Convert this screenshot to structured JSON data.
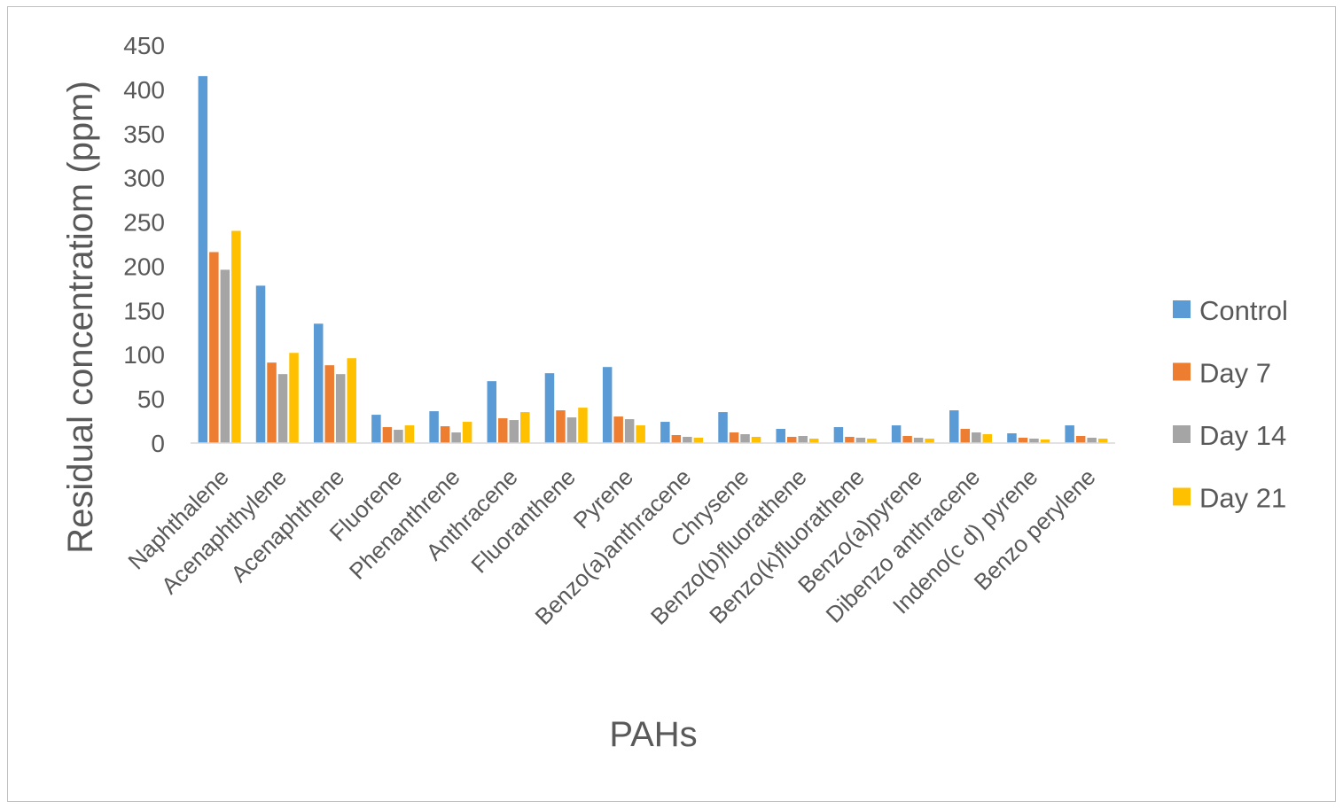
{
  "chart_data": {
    "type": "bar",
    "title": "",
    "xlabel": "PAHs",
    "ylabel": "Residual concentratiom (ppm)",
    "ylim": [
      0,
      450
    ],
    "yticks": [
      0,
      50,
      100,
      150,
      200,
      250,
      300,
      350,
      400,
      450
    ],
    "grid": false,
    "legend_position": "right",
    "categories": [
      "Naphthalene",
      "Acenaphthylene",
      "Acenaphthene",
      "Fluorene",
      "Phenanthrene",
      "Anthracene",
      "Fluoranthene",
      "Pyrene",
      "Benzo(a)anthracene",
      "Chrysene",
      "Benzo(b)fluorathene",
      "Benzo(k)fluorathene",
      "Benzo(a)pyrene",
      "Dibenzo anthracene",
      "Indeno(c d) pyrene",
      "Benzo perylene"
    ],
    "series": [
      {
        "name": "Control",
        "color": "#5b9bd5",
        "values": [
          415,
          178,
          135,
          32,
          36,
          70,
          79,
          86,
          24,
          35,
          16,
          18,
          20,
          37,
          11,
          20
        ]
      },
      {
        "name": "Day 7",
        "color": "#ed7d31",
        "values": [
          216,
          91,
          88,
          18,
          19,
          28,
          37,
          30,
          9,
          12,
          7,
          7,
          8,
          16,
          6,
          8
        ]
      },
      {
        "name": "Day 14",
        "color": "#a5a5a5",
        "values": [
          196,
          78,
          78,
          15,
          12,
          26,
          29,
          27,
          7,
          10,
          8,
          6,
          6,
          12,
          5,
          6
        ]
      },
      {
        "name": "Day 21",
        "color": "#ffc000",
        "values": [
          240,
          102,
          96,
          20,
          24,
          35,
          40,
          20,
          6,
          7,
          5,
          5,
          5,
          10,
          4,
          5
        ]
      }
    ]
  }
}
